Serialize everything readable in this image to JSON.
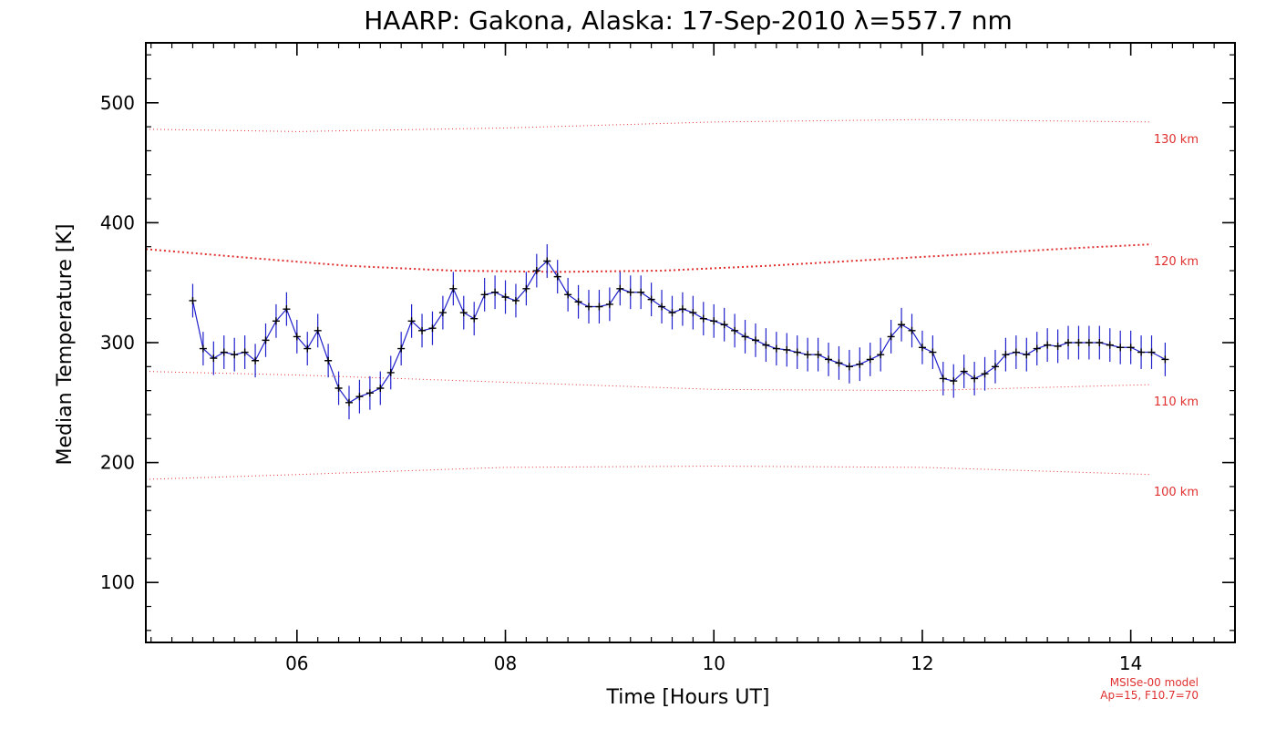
{
  "chart_data": {
    "type": "line",
    "title": "HAARP: Gakona,  Alaska: 17-Sep-2010 λ=557.7 nm",
    "xlabel": "Time [Hours UT]",
    "ylabel": "Median Temperature [K]",
    "xlim": [
      4.55,
      15.0
    ],
    "ylim": [
      50,
      550
    ],
    "x_ticks": [
      {
        "value": 6,
        "label": "06"
      },
      {
        "value": 8,
        "label": "08"
      },
      {
        "value": 10,
        "label": "10"
      },
      {
        "value": 12,
        "label": "12"
      },
      {
        "value": 14,
        "label": "14"
      }
    ],
    "y_ticks": [
      {
        "value": 100,
        "label": "100"
      },
      {
        "value": 200,
        "label": "200"
      },
      {
        "value": 300,
        "label": "300"
      },
      {
        "value": 400,
        "label": "400"
      },
      {
        "value": 500,
        "label": "500"
      }
    ],
    "grid": false,
    "series": [
      {
        "color": "#000000",
        "errorbar_color": "#2020cc",
        "x": [
          5.0,
          5.1,
          5.2,
          5.3,
          5.4,
          5.5,
          5.6,
          5.7,
          5.8,
          5.9,
          6.0,
          6.1,
          6.2,
          6.3,
          6.4,
          6.5,
          6.6,
          6.7,
          6.8,
          6.9,
          7.0,
          7.1,
          7.2,
          7.3,
          7.4,
          7.5,
          7.6,
          7.7,
          7.8,
          7.9,
          8.0,
          8.1,
          8.2,
          8.3,
          8.4,
          8.5,
          8.6,
          8.7,
          8.8,
          8.9,
          9.0,
          9.1,
          9.2,
          9.3,
          9.4,
          9.5,
          9.6,
          9.7,
          9.8,
          9.9,
          10.0,
          10.1,
          10.2,
          10.3,
          10.4,
          10.5,
          10.6,
          10.7,
          10.8,
          10.9,
          11.0,
          11.1,
          11.2,
          11.3,
          11.4,
          11.5,
          11.6,
          11.7,
          11.8,
          11.9,
          12.0,
          12.1,
          12.2,
          12.3,
          12.4,
          12.5,
          12.6,
          12.7,
          12.8,
          12.9,
          13.0,
          13.1,
          13.2,
          13.3,
          13.4,
          13.5,
          13.6,
          13.7,
          13.8,
          13.9,
          14.0,
          14.1,
          14.2,
          14.33
        ],
        "y": [
          335,
          295,
          287,
          292,
          290,
          292,
          285,
          302,
          318,
          328,
          305,
          295,
          310,
          285,
          262,
          250,
          255,
          258,
          262,
          275,
          295,
          318,
          310,
          312,
          325,
          345,
          325,
          320,
          340,
          342,
          338,
          335,
          345,
          360,
          368,
          355,
          340,
          334,
          330,
          330,
          332,
          345,
          342,
          342,
          336,
          330,
          325,
          328,
          325,
          320,
          318,
          315,
          310,
          305,
          302,
          298,
          295,
          294,
          292,
          290,
          290,
          286,
          283,
          280,
          282,
          286,
          290,
          305,
          315,
          310,
          296,
          292,
          270,
          268,
          276,
          270,
          274,
          280,
          290,
          292,
          290,
          295,
          298,
          297,
          300,
          300,
          300,
          300,
          298,
          296,
          296,
          292,
          292,
          286
        ],
        "error": [
          14,
          14,
          14,
          14,
          14,
          14,
          14,
          14,
          14,
          14,
          14,
          14,
          14,
          14,
          14,
          14,
          14,
          14,
          14,
          14,
          14,
          14,
          14,
          14,
          14,
          14,
          14,
          14,
          14,
          14,
          14,
          14,
          14,
          14,
          14,
          14,
          14,
          14,
          14,
          14,
          14,
          14,
          14,
          14,
          14,
          14,
          14,
          14,
          14,
          14,
          14,
          14,
          14,
          14,
          14,
          14,
          14,
          14,
          14,
          14,
          14,
          14,
          14,
          14,
          14,
          14,
          14,
          14,
          14,
          14,
          14,
          14,
          14,
          14,
          14,
          14,
          14,
          14,
          14,
          14,
          14,
          14,
          14,
          14,
          14,
          14,
          14,
          14,
          14,
          14,
          14,
          14,
          14,
          14
        ]
      }
    ],
    "model_curves": [
      {
        "label": "130 km",
        "color": "#e03030",
        "x": [
          4.55,
          6,
          8,
          10,
          12,
          14.2
        ],
        "y": [
          478,
          476,
          479,
          484,
          486,
          484
        ]
      },
      {
        "label": "120 km",
        "color": "#e03030",
        "x": [
          4.55,
          5.5,
          6.5,
          7.5,
          8.5,
          9.5,
          10.5,
          11.5,
          12.5,
          13.5,
          14.2
        ],
        "y": [
          378,
          371,
          364,
          360,
          359,
          360,
          364,
          369,
          374,
          379,
          382
        ]
      },
      {
        "label": "110 km",
        "color": "#e03030",
        "x": [
          4.55,
          6,
          8,
          10,
          12,
          14.2
        ],
        "y": [
          276,
          273,
          267,
          261,
          260,
          265
        ]
      },
      {
        "label": "100 km",
        "color": "#e03030",
        "x": [
          4.55,
          6,
          8,
          10,
          12,
          14.2
        ],
        "y": [
          186,
          190,
          196,
          197,
          196,
          190
        ]
      }
    ],
    "annotations": [
      "MSISe-00 model",
      "Ap=15, F10.7=70"
    ]
  }
}
